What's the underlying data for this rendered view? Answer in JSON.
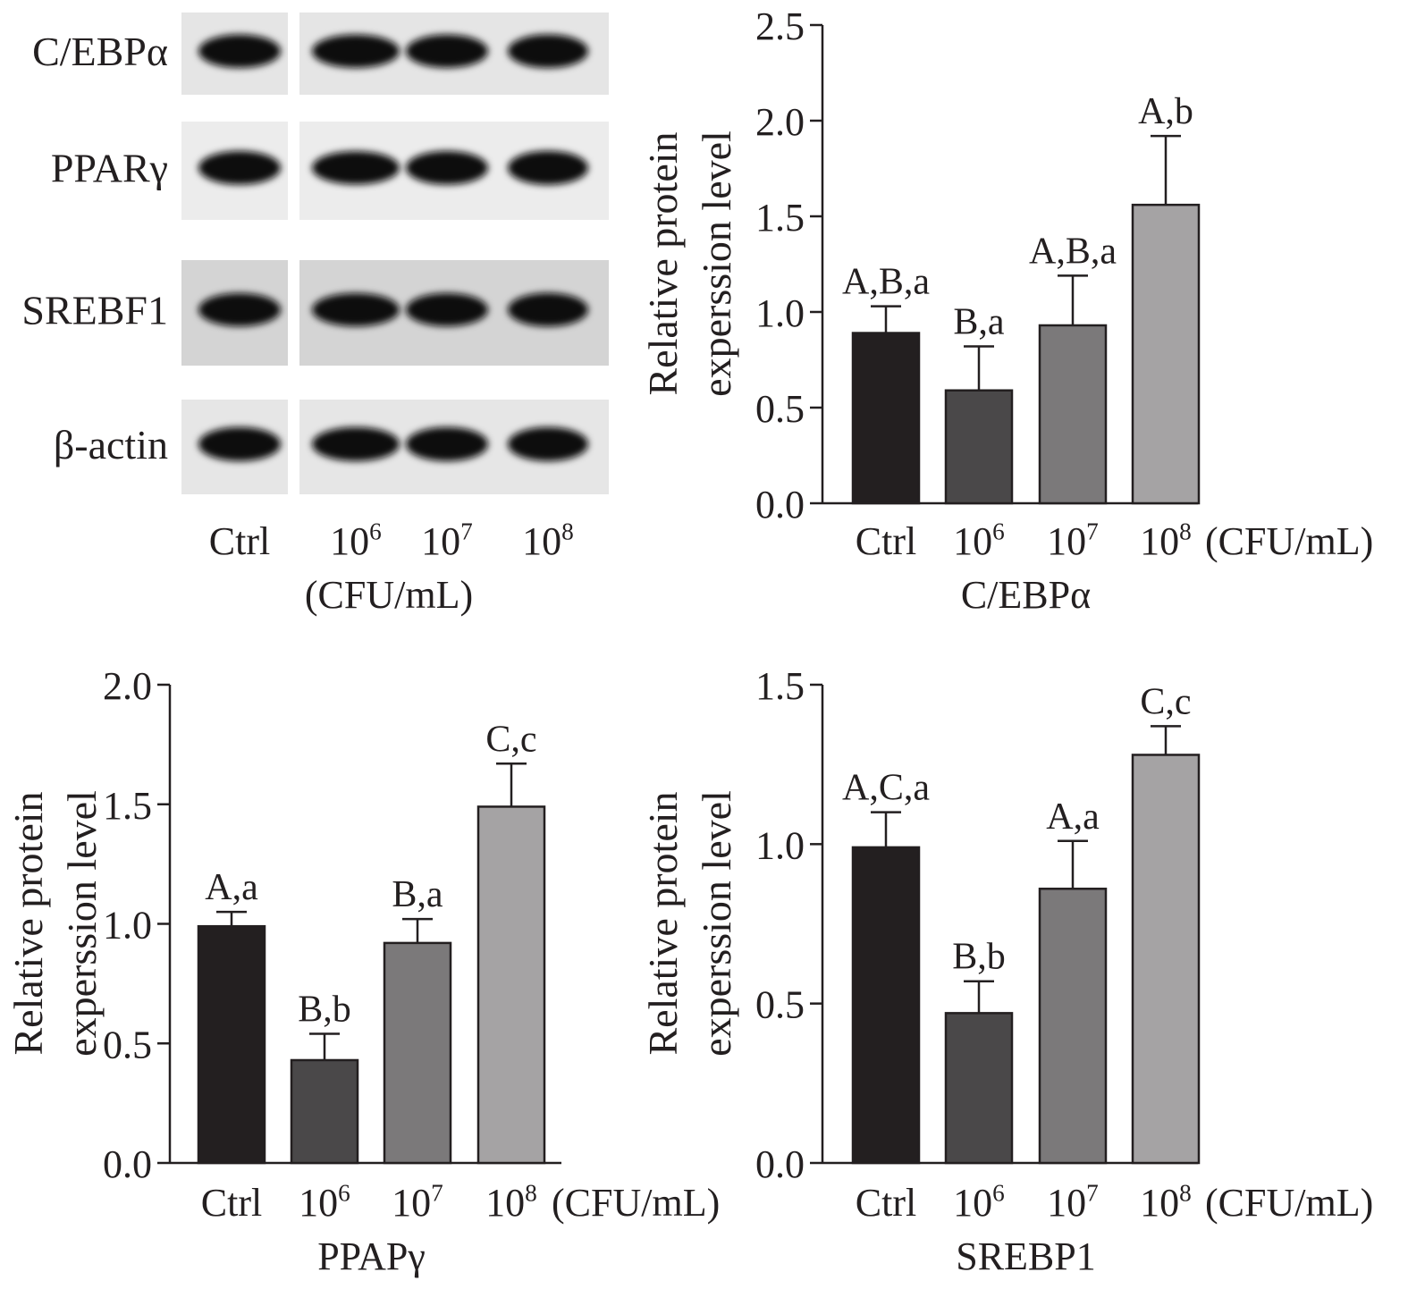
{
  "blot": {
    "rows": [
      {
        "label": "C/EBPα",
        "intensity": [
          0.92,
          0.9,
          0.9,
          0.95
        ]
      },
      {
        "label": "PPARγ",
        "intensity": [
          0.95,
          0.9,
          0.95,
          1.0
        ]
      },
      {
        "label": "SREBF1",
        "intensity": [
          0.9,
          0.9,
          0.9,
          0.95
        ]
      },
      {
        "label": "β-actin",
        "intensity": [
          1.0,
          1.0,
          1.0,
          1.0
        ]
      }
    ],
    "lanes": [
      {
        "base": "Ctrl",
        "sup": ""
      },
      {
        "base": "10",
        "sup": "6"
      },
      {
        "base": "10",
        "sup": "7"
      },
      {
        "base": "10",
        "sup": "8"
      }
    ],
    "unit": "(CFU/mL)"
  },
  "chart_data": [
    {
      "type": "bar",
      "title": "C/EBPα",
      "ylabel_line1": "Relative protein",
      "ylabel_line2": "experssion level",
      "ylim": [
        0,
        2.5
      ],
      "yticks": [
        "0.0",
        "0.5",
        "1.0",
        "1.5",
        "2.0",
        "2.5"
      ],
      "unit": "(CFU/mL)",
      "categories": [
        {
          "base": "Ctrl",
          "sup": ""
        },
        {
          "base": "10",
          "sup": "6"
        },
        {
          "base": "10",
          "sup": "7"
        },
        {
          "base": "10",
          "sup": "8"
        }
      ],
      "values": [
        0.89,
        0.59,
        0.93,
        1.56
      ],
      "errors": [
        0.14,
        0.23,
        0.26,
        0.36
      ],
      "annotations": [
        "A,B,a",
        "B,a",
        "A,B,a",
        "A,b"
      ],
      "colors": [
        "#231f20",
        "#4a4849",
        "#7b797a",
        "#a5a3a4"
      ]
    },
    {
      "type": "bar",
      "title": "PPAPγ",
      "ylabel_line1": "Relative protein",
      "ylabel_line2": "experssion level",
      "ylim": [
        0,
        2.0
      ],
      "yticks": [
        "0.0",
        "0.5",
        "1.0",
        "1.5",
        "2.0"
      ],
      "unit": "(CFU/mL)",
      "categories": [
        {
          "base": "Ctrl",
          "sup": ""
        },
        {
          "base": "10",
          "sup": "6"
        },
        {
          "base": "10",
          "sup": "7"
        },
        {
          "base": "10",
          "sup": "8"
        }
      ],
      "values": [
        0.99,
        0.43,
        0.92,
        1.49
      ],
      "errors": [
        0.06,
        0.11,
        0.1,
        0.18
      ],
      "annotations": [
        "A,a",
        "B,b",
        "B,a",
        "C,c"
      ],
      "colors": [
        "#231f20",
        "#4a4849",
        "#7b797a",
        "#a5a3a4"
      ]
    },
    {
      "type": "bar",
      "title": "SREBP1",
      "ylabel_line1": "Relative protein",
      "ylabel_line2": "experssion level",
      "ylim": [
        0,
        1.5
      ],
      "yticks": [
        "0.0",
        "0.5",
        "1.0",
        "1.5"
      ],
      "unit": "(CFU/mL)",
      "categories": [
        {
          "base": "Ctrl",
          "sup": ""
        },
        {
          "base": "10",
          "sup": "6"
        },
        {
          "base": "10",
          "sup": "7"
        },
        {
          "base": "10",
          "sup": "8"
        }
      ],
      "values": [
        0.99,
        0.47,
        0.86,
        1.28
      ],
      "errors": [
        0.11,
        0.1,
        0.15,
        0.09
      ],
      "annotations": [
        "A,C,a",
        "B,b",
        "A,a",
        "C,c"
      ],
      "colors": [
        "#231f20",
        "#4a4849",
        "#7b797a",
        "#a5a3a4"
      ]
    }
  ]
}
